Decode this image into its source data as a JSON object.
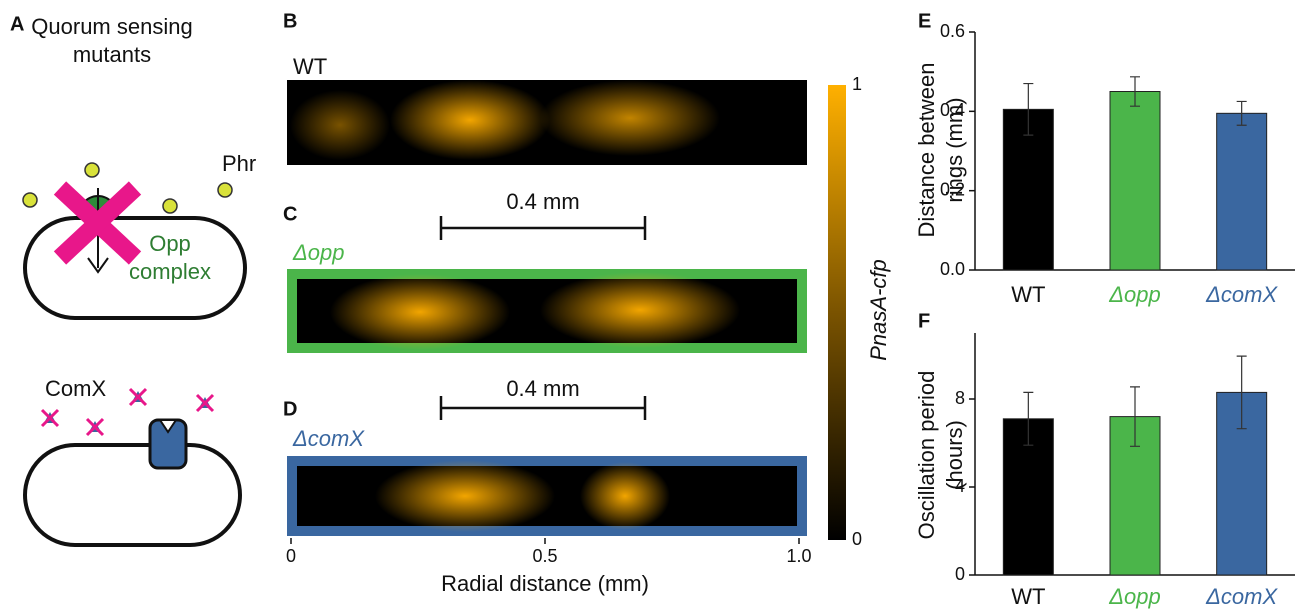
{
  "panel_a": {
    "letter": "A",
    "title": [
      "Quorum sensing",
      "mutants"
    ],
    "phr": "Phr",
    "opp": [
      "Opp",
      "complex"
    ],
    "comx": "ComX"
  },
  "images": {
    "letters": [
      "B",
      "C",
      "D"
    ],
    "strains": [
      "WT",
      "Δopp",
      "ΔcomX"
    ],
    "scale_bar": "0.4 mm",
    "xticks": [
      "0",
      "0.5",
      "1.0"
    ],
    "xlabel": "Radial distance (mm)",
    "colorbar_ticks": [
      "1",
      "0"
    ],
    "colorbar_label": "PnasA-cfp"
  },
  "chart_data": [
    {
      "type": "bar",
      "letter": "E",
      "ylabel": [
        "Distance between",
        "rings (mm)"
      ],
      "categories": [
        "WT",
        "Δopp",
        "ΔcomX"
      ],
      "values": [
        0.405,
        0.45,
        0.395
      ],
      "errors": [
        0.065,
        0.037,
        0.03
      ],
      "colors": [
        "#000000",
        "#4bb54a",
        "#3a67a0"
      ],
      "ylim": [
        0,
        0.6
      ],
      "yticks": [
        {
          "value": 0,
          "label": "0.0"
        },
        0.2,
        0.4,
        0.6
      ]
    },
    {
      "type": "bar",
      "letter": "F",
      "ylabel": [
        "Oscillation period",
        "(hours)"
      ],
      "categories": [
        "WT",
        "Δopp",
        "ΔcomX"
      ],
      "values": [
        7.1,
        7.2,
        8.3
      ],
      "errors": [
        1.2,
        1.35,
        1.65
      ],
      "colors": [
        "#000000",
        "#4bb54a",
        "#3a67a0"
      ],
      "ylim": [
        0,
        11
      ],
      "yticks": [
        0,
        4,
        8
      ]
    }
  ]
}
